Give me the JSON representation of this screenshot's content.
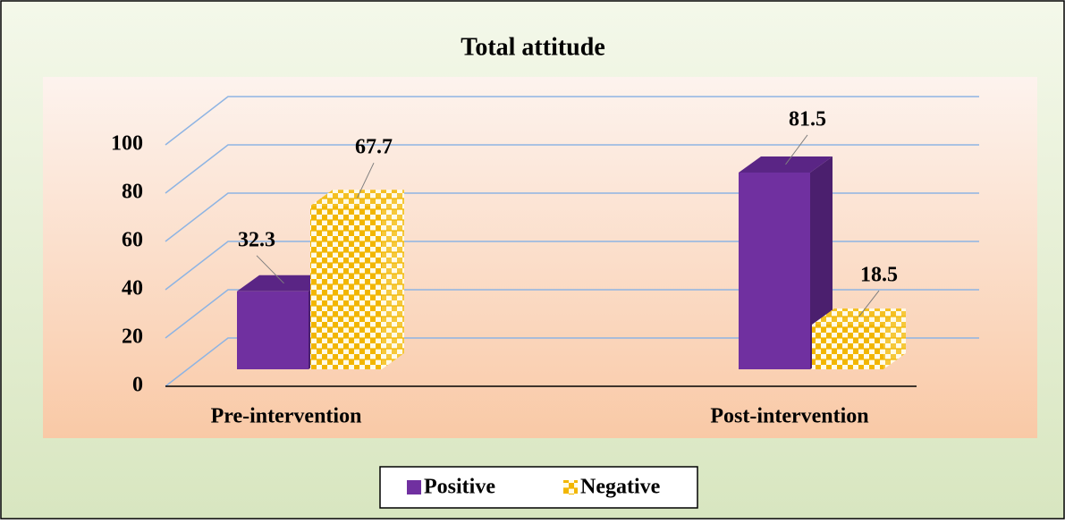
{
  "chart_data": {
    "type": "bar3d",
    "title": "Total attitude",
    "categories": [
      "Pre-intervention",
      "Post-intervention"
    ],
    "series": [
      {
        "name": "Positive",
        "color": "#7030a0",
        "values": [
          32.3,
          81.5
        ]
      },
      {
        "name": "Negative",
        "color": "#f2b600",
        "values": [
          67.7,
          18.5
        ]
      }
    ],
    "ylim": [
      0,
      100
    ],
    "yticks": [
      0,
      20,
      40,
      60,
      80,
      100
    ],
    "grid": true,
    "legend": "bottom"
  }
}
